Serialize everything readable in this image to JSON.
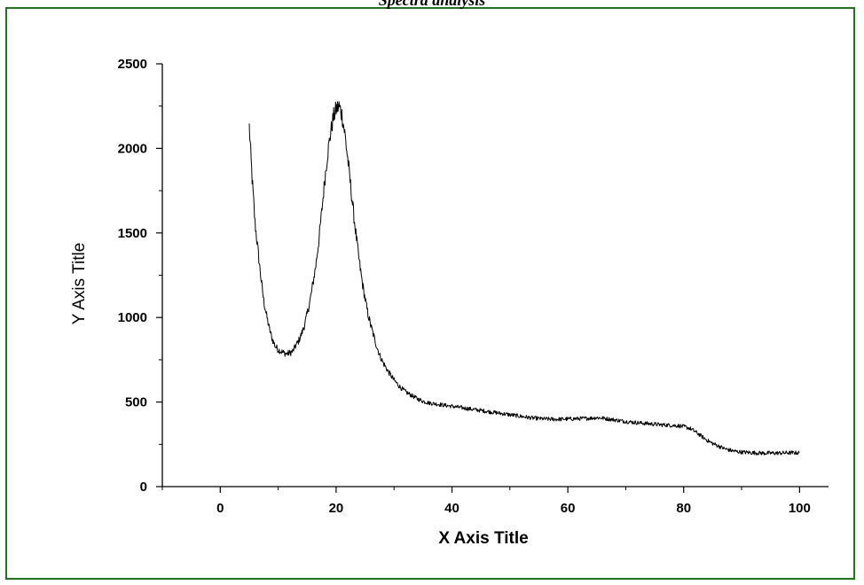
{
  "chart_data": {
    "type": "line",
    "title": "Spectra analysis",
    "xlabel": "X Axis Title",
    "ylabel": "Y Axis Title",
    "xlim": [
      -10,
      105
    ],
    "ylim": [
      0,
      2500
    ],
    "xticks": [
      0,
      20,
      40,
      60,
      80,
      100
    ],
    "yticks": [
      0,
      500,
      1000,
      1500,
      2000,
      2500
    ],
    "grid": false,
    "legend": "none",
    "line_color": "#000000",
    "frame_color": "#1a7a1a",
    "series": [
      {
        "x": [
          5,
          5.5,
          6,
          6.5,
          7,
          7.5,
          8,
          8.5,
          9,
          9.5,
          10,
          10.5,
          11,
          11.5,
          12,
          12.5,
          13,
          13.5,
          14,
          14.5,
          15,
          15.5,
          16,
          16.5,
          17,
          17.5,
          18,
          18.5,
          19,
          19.5,
          20,
          20.5,
          21,
          21.5,
          22,
          22.5,
          23,
          23.5,
          24,
          24.5,
          25,
          25.5,
          26,
          26.5,
          27,
          27.5,
          28,
          29,
          30,
          31,
          32,
          33,
          34,
          35,
          36,
          37,
          38,
          39,
          40,
          42,
          44,
          46,
          48,
          50,
          52,
          54,
          56,
          58,
          60,
          62,
          64,
          65,
          66,
          68,
          70,
          72,
          74,
          76,
          78,
          79,
          80,
          81,
          82,
          83,
          84,
          85,
          86,
          87,
          88,
          89,
          90,
          92,
          94,
          96,
          98,
          100
        ],
        "y": [
          2130,
          1820,
          1560,
          1400,
          1240,
          1100,
          1010,
          930,
          870,
          830,
          810,
          800,
          790,
          785,
          790,
          800,
          830,
          860,
          900,
          950,
          1020,
          1100,
          1200,
          1310,
          1450,
          1620,
          1800,
          1960,
          2080,
          2180,
          2230,
          2250,
          2200,
          2090,
          1940,
          1780,
          1620,
          1470,
          1330,
          1210,
          1110,
          1020,
          950,
          890,
          830,
          780,
          740,
          680,
          630,
          590,
          560,
          540,
          520,
          505,
          495,
          490,
          485,
          480,
          475,
          465,
          455,
          445,
          435,
          425,
          415,
          405,
          400,
          398,
          400,
          402,
          405,
          408,
          405,
          395,
          385,
          378,
          372,
          366,
          362,
          360,
          355,
          345,
          325,
          300,
          275,
          255,
          240,
          225,
          215,
          208,
          204,
          200,
          198,
          198,
          200,
          200
        ]
      }
    ]
  }
}
